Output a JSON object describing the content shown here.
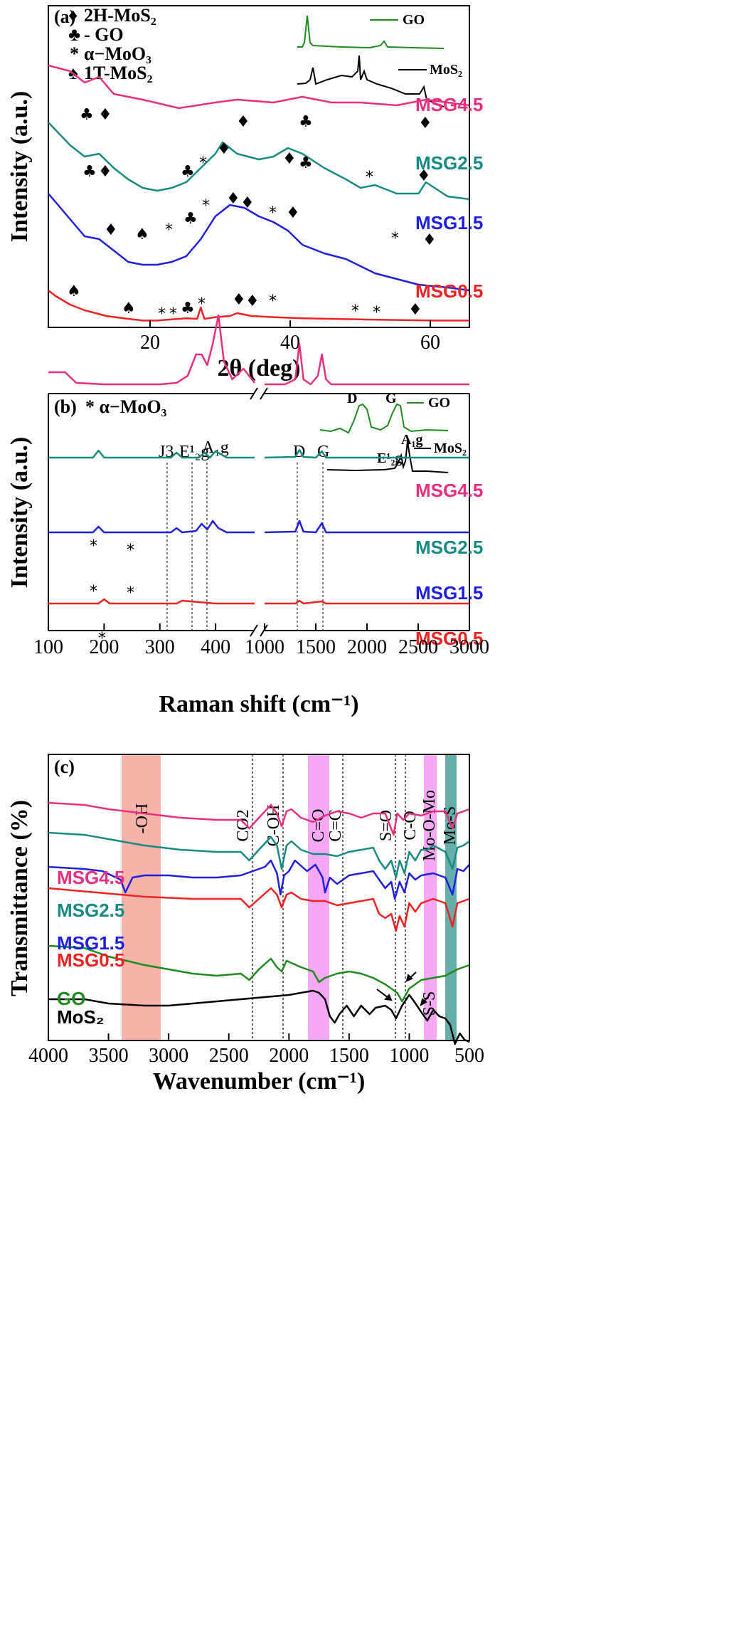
{
  "panels": [
    {
      "id": "a",
      "tag": "(a)",
      "xlabel": "2θ (deg)",
      "ylabel": "Intensity (a.u.)",
      "legend": [
        {
          "symbol": "♦",
          "text": "2H-MoS₂"
        },
        {
          "symbol": "♣",
          "text": "- GO"
        },
        {
          "symbol": "*",
          "text": "α−MoO₃"
        },
        {
          "symbol": "♠",
          "text": "1T-MoS₂"
        }
      ],
      "xticks": [
        "20",
        "40",
        "60"
      ],
      "inset_labels": [
        "GO",
        "MoS₂"
      ],
      "series": [
        {
          "name": "MSG4.5",
          "color": "#e6307f"
        },
        {
          "name": "MSG2.5",
          "color": "#178a84"
        },
        {
          "name": "MSG1.5",
          "color": "#1f1fe0"
        },
        {
          "name": "MSG0.5",
          "color": "#ee2222"
        }
      ]
    },
    {
      "id": "b",
      "tag": "(b)",
      "subtag": "* α−MoO₃",
      "xlabel": "Raman shift (cm⁻¹)",
      "ylabel": "Intensity (a.u.)",
      "xticks": [
        "100",
        "200",
        "300",
        "400",
        "1000",
        "1500",
        "2000",
        "2500",
        "3000"
      ],
      "peak_labels": [
        "J3",
        "E¹₂g",
        "A₁g",
        "D",
        "G"
      ],
      "inset_labels": [
        "GO",
        "MoS₂",
        "D",
        "G",
        "A₁g",
        "E¹₂g"
      ],
      "series": [
        {
          "name": "MSG4.5",
          "color": "#e6307f"
        },
        {
          "name": "MSG2.5",
          "color": "#178a84"
        },
        {
          "name": "MSG1.5",
          "color": "#1f1fe0"
        },
        {
          "name": "MSG0.5",
          "color": "#ee2222"
        }
      ]
    },
    {
      "id": "c",
      "tag": "(c)",
      "xlabel": "Wavenumber (cm⁻¹)",
      "ylabel": "Transmittance (%)",
      "xticks": [
        "4000",
        "3500",
        "3000",
        "2500",
        "2000",
        "1500",
        "1000",
        "500"
      ],
      "band_labels": [
        "-OH",
        "CO2",
        "C-OH",
        "C=O",
        "C=C",
        "S=O",
        "C-O",
        "Mo-O-Mo",
        "Mo-S",
        "S-S"
      ],
      "band_colors": {
        "oh": "#f29a8e",
        "co": "#f28cf2",
        "moomo": "#f28cf2",
        "mos": "#4aa09a"
      },
      "series": [
        {
          "name": "MSG4.5",
          "color": "#e6307f"
        },
        {
          "name": "MSG2.5",
          "color": "#178a84"
        },
        {
          "name": "MSG1.5",
          "color": "#1f1fe0"
        },
        {
          "name": "MSG0.5",
          "color": "#ee2222"
        },
        {
          "name": "GO",
          "color": "#1f8a1f"
        },
        {
          "name": "MoS₂",
          "color": "#000000"
        }
      ]
    }
  ],
  "chart_data": [
    {
      "type": "line",
      "title": "",
      "xlabel": "2θ (deg)",
      "ylabel": "Intensity (a.u.)",
      "xlim": [
        7,
        65
      ],
      "grid": false,
      "legend_placement": "top-left",
      "series": [
        {
          "name": "MSG4.5",
          "x": [
            7,
            10,
            12,
            14,
            16,
            20,
            25,
            30,
            33,
            38,
            42,
            46,
            50,
            55,
            59,
            62,
            65
          ],
          "y": [
            4.5,
            4.4,
            4.2,
            4.3,
            4.0,
            3.9,
            3.75,
            3.85,
            3.9,
            3.85,
            3.95,
            3.85,
            3.85,
            3.8,
            3.9,
            3.85,
            3.8
          ]
        },
        {
          "name": "MSG2.5",
          "x": [
            7,
            10,
            12,
            14,
            16,
            18,
            20,
            22,
            24,
            26,
            28,
            30,
            31,
            33,
            36,
            38,
            40,
            42,
            45,
            48,
            50,
            52,
            55,
            58,
            59,
            62,
            65
          ],
          "y": [
            3.5,
            3.1,
            2.9,
            2.95,
            2.7,
            2.5,
            2.35,
            2.3,
            2.35,
            2.45,
            2.7,
            2.95,
            3.15,
            2.95,
            2.85,
            2.9,
            3.05,
            2.95,
            2.7,
            2.5,
            2.35,
            2.4,
            2.25,
            2.25,
            2.45,
            2.2,
            2.15
          ]
        },
        {
          "name": "MSG1.5",
          "x": [
            7,
            10,
            12,
            14,
            16,
            18,
            20,
            22,
            24,
            26,
            28,
            30,
            32,
            34,
            36,
            38,
            40,
            42,
            45,
            48,
            52,
            55,
            58,
            62,
            65
          ],
          "y": [
            2.25,
            1.8,
            1.5,
            1.45,
            1.25,
            1.05,
            1.0,
            1.0,
            1.05,
            1.15,
            1.45,
            1.85,
            2.05,
            2.0,
            1.85,
            1.75,
            1.6,
            1.35,
            1.2,
            1.1,
            0.85,
            0.75,
            0.65,
            0.6,
            0.55
          ]
        },
        {
          "name": "MSG0.5",
          "x": [
            7,
            8,
            10,
            12,
            15,
            18,
            20,
            22,
            24,
            26,
            27.5,
            28,
            28.5,
            30,
            32,
            33,
            35,
            38,
            42,
            46,
            50,
            55,
            60,
            65
          ],
          "y": [
            0.55,
            0.45,
            0.3,
            0.2,
            0.1,
            0.05,
            0.02,
            0.02,
            0.04,
            0.06,
            0.05,
            0.25,
            0.05,
            0.08,
            0.1,
            0.15,
            0.1,
            0.08,
            0.06,
            0.05,
            0.04,
            0.03,
            0.02,
            0.02
          ]
        }
      ]
    },
    {
      "type": "line",
      "title": "",
      "xlabel": "Raman shift (cm⁻¹)",
      "ylabel": "Intensity (a.u.)",
      "xlim": [
        100,
        3000
      ],
      "axis_break": [
        500,
        1000
      ],
      "grid": false,
      "series": [
        {
          "name": "MSG4.5",
          "x": [
            100,
            130,
            150,
            200,
            250,
            300,
            330,
            350,
            365,
            375,
            385,
            395,
            405,
            415,
            430,
            450,
            470,
            1000,
            1200,
            1300,
            1340,
            1380,
            1450,
            1520,
            1560,
            1600,
            1650,
            2000,
            2500,
            3000
          ],
          "y": [
            3.55,
            3.55,
            3.4,
            3.38,
            3.38,
            3.38,
            3.4,
            3.5,
            3.8,
            3.8,
            3.65,
            3.95,
            4.35,
            3.7,
            3.45,
            3.6,
            3.4,
            3.38,
            3.38,
            3.45,
            3.95,
            3.45,
            3.38,
            3.5,
            3.8,
            3.45,
            3.38,
            3.38,
            3.38,
            3.38
          ]
        },
        {
          "name": "MSG2.5",
          "x": [
            100,
            180,
            190,
            200,
            260,
            320,
            330,
            340,
            370,
            380,
            390,
            400,
            420,
            470,
            1000,
            1300,
            1340,
            1380,
            1500,
            1560,
            1600,
            2000,
            3000
          ],
          "y": [
            2.35,
            2.35,
            2.45,
            2.35,
            2.35,
            2.35,
            2.42,
            2.35,
            2.35,
            2.42,
            2.35,
            2.44,
            2.35,
            2.35,
            2.35,
            2.36,
            2.46,
            2.36,
            2.35,
            2.44,
            2.35,
            2.35,
            2.35
          ]
        },
        {
          "name": "MSG1.5",
          "x": [
            100,
            180,
            190,
            200,
            260,
            320,
            330,
            340,
            365,
            375,
            385,
            395,
            405,
            420,
            470,
            1000,
            1300,
            1340,
            1380,
            1500,
            1560,
            1600,
            2000,
            3000
          ],
          "y": [
            1.3,
            1.3,
            1.38,
            1.3,
            1.3,
            1.3,
            1.36,
            1.3,
            1.32,
            1.42,
            1.34,
            1.46,
            1.36,
            1.3,
            1.3,
            1.3,
            1.31,
            1.46,
            1.31,
            1.3,
            1.43,
            1.3,
            1.3,
            1.3
          ]
        },
        {
          "name": "MSG0.5",
          "x": [
            100,
            190,
            200,
            210,
            330,
            340,
            400,
            470,
            1000,
            1300,
            1340,
            1380,
            1560,
            1600,
            3000
          ],
          "y": [
            0.3,
            0.3,
            0.36,
            0.3,
            0.3,
            0.34,
            0.3,
            0.3,
            0.3,
            0.3,
            0.34,
            0.3,
            0.33,
            0.3,
            0.3
          ]
        }
      ]
    },
    {
      "type": "line",
      "title": "",
      "xlabel": "Wavenumber (cm⁻¹)",
      "ylabel": "Transmittance (%)",
      "xlim": [
        4000,
        500
      ],
      "grid": false,
      "series": [
        {
          "name": "MSG4.5",
          "x": [
            4000,
            3700,
            3500,
            3200,
            2900,
            2600,
            2400,
            2330,
            2250,
            2150,
            2100,
            2060,
            2020,
            1980,
            1900,
            1800,
            1700,
            1600,
            1500,
            1400,
            1300,
            1200,
            1130,
            1100,
            1050,
            1000,
            900,
            800,
            700,
            640,
            600,
            550,
            500
          ],
          "y": [
            5.2,
            5.15,
            5.05,
            4.95,
            4.85,
            4.8,
            4.8,
            4.6,
            4.85,
            5.15,
            4.95,
            4.65,
            5.0,
            5.05,
            4.85,
            4.75,
            4.9,
            5.0,
            4.95,
            4.85,
            4.95,
            4.95,
            4.45,
            4.95,
            4.8,
            4.95,
            4.9,
            5.0,
            5.0,
            4.6,
            4.95,
            5.0,
            5.05
          ]
        },
        {
          "name": "MSG2.5",
          "x": [
            4000,
            3700,
            3500,
            3200,
            2900,
            2600,
            2400,
            2330,
            2250,
            2150,
            2100,
            2060,
            2020,
            1980,
            1900,
            1800,
            1700,
            1600,
            1500,
            1400,
            1300,
            1250,
            1200,
            1150,
            1110,
            1080,
            1040,
            1000,
            950,
            900,
            850,
            800,
            700,
            640,
            600,
            550,
            500
          ],
          "y": [
            4.5,
            4.45,
            4.35,
            4.2,
            4.1,
            4.05,
            4.05,
            3.85,
            4.1,
            4.4,
            4.2,
            3.65,
            4.2,
            4.3,
            4.1,
            4.0,
            4.0,
            3.95,
            4.05,
            4.1,
            4.15,
            3.85,
            3.65,
            3.85,
            3.45,
            3.85,
            3.55,
            4.05,
            3.85,
            4.1,
            4.1,
            4.2,
            4.05,
            3.65,
            4.15,
            4.2,
            4.3
          ]
        },
        {
          "name": "MSG1.5",
          "x": [
            4000,
            3700,
            3550,
            3400,
            3360,
            3300,
            3200,
            3000,
            2800,
            2600,
            2400,
            2200,
            2150,
            2100,
            2070,
            2040,
            2000,
            1950,
            1850,
            1780,
            1720,
            1700,
            1660,
            1600,
            1500,
            1400,
            1300,
            1250,
            1200,
            1150,
            1120,
            1080,
            1040,
            1000,
            950,
            900,
            800,
            700,
            640,
            600,
            550,
            500
          ],
          "y": [
            3.7,
            3.65,
            3.6,
            3.4,
            3.1,
            3.45,
            3.5,
            3.5,
            3.45,
            3.45,
            3.5,
            3.7,
            3.85,
            3.55,
            3.05,
            3.5,
            3.6,
            3.85,
            3.6,
            3.75,
            3.45,
            3.1,
            3.45,
            3.3,
            3.5,
            3.55,
            3.6,
            3.4,
            3.2,
            3.35,
            2.95,
            3.35,
            3.1,
            3.55,
            3.4,
            3.5,
            3.55,
            3.45,
            3.05,
            3.65,
            3.6,
            3.75
          ]
        },
        {
          "name": "MSG0.5",
          "x": [
            4000,
            3600,
            3200,
            2800,
            2400,
            2330,
            2250,
            2150,
            2100,
            2060,
            2020,
            1980,
            1900,
            1800,
            1700,
            1600,
            1500,
            1400,
            1300,
            1250,
            1200,
            1150,
            1110,
            1080,
            1040,
            1000,
            950,
            900,
            800,
            700,
            640,
            600,
            550,
            500
          ],
          "y": [
            3.2,
            3.1,
            3.0,
            2.95,
            2.95,
            2.75,
            2.95,
            3.2,
            3.05,
            2.75,
            3.05,
            3.1,
            2.95,
            2.9,
            2.9,
            2.8,
            2.85,
            2.9,
            2.95,
            2.6,
            2.5,
            2.6,
            2.2,
            2.55,
            2.3,
            2.85,
            2.65,
            2.85,
            2.95,
            2.85,
            2.3,
            2.85,
            2.9,
            2.95
          ]
        },
        {
          "name": "GO",
          "x": [
            4000,
            3700,
            3500,
            3200,
            3000,
            2800,
            2600,
            2400,
            2330,
            2250,
            2150,
            2100,
            2060,
            2020,
            1980,
            1900,
            1800,
            1750,
            1700,
            1600,
            1500,
            1400,
            1300,
            1200,
            1100,
            1060,
            1000,
            950,
            900,
            800,
            700,
            600,
            500
          ],
          "y": [
            1.85,
            1.8,
            1.6,
            1.4,
            1.3,
            1.2,
            1.15,
            1.2,
            1.05,
            1.3,
            1.55,
            1.35,
            1.25,
            1.5,
            1.45,
            1.35,
            1.25,
            1.0,
            1.1,
            1.2,
            1.25,
            1.2,
            1.1,
            0.95,
            0.75,
            0.55,
            0.85,
            0.95,
            1.05,
            1.1,
            1.15,
            1.3,
            1.4
          ]
        },
        {
          "name": "MoS₂",
          "x": [
            4000,
            3700,
            3500,
            3200,
            3000,
            2800,
            2600,
            2400,
            2200,
            2000,
            1800,
            1750,
            1700,
            1660,
            1620,
            1580,
            1520,
            1460,
            1400,
            1330,
            1280,
            1200,
            1150,
            1110,
            1060,
            1000,
            960,
            900,
            850,
            800,
            750,
            700,
            660,
            620,
            580,
            540,
            500
          ],
          "y": [
            0.6,
            0.6,
            0.5,
            0.45,
            0.45,
            0.5,
            0.55,
            0.6,
            0.65,
            0.7,
            0.8,
            0.75,
            0.6,
            0.2,
            0.05,
            0.25,
            0.45,
            0.2,
            0.45,
            0.25,
            0.4,
            0.45,
            0.35,
            0.15,
            0.45,
            0.7,
            0.55,
            0.3,
            0.1,
            0.35,
            0.2,
            0.15,
            0.0,
            -0.45,
            -0.2,
            -0.35,
            -0.4
          ]
        }
      ]
    }
  ]
}
